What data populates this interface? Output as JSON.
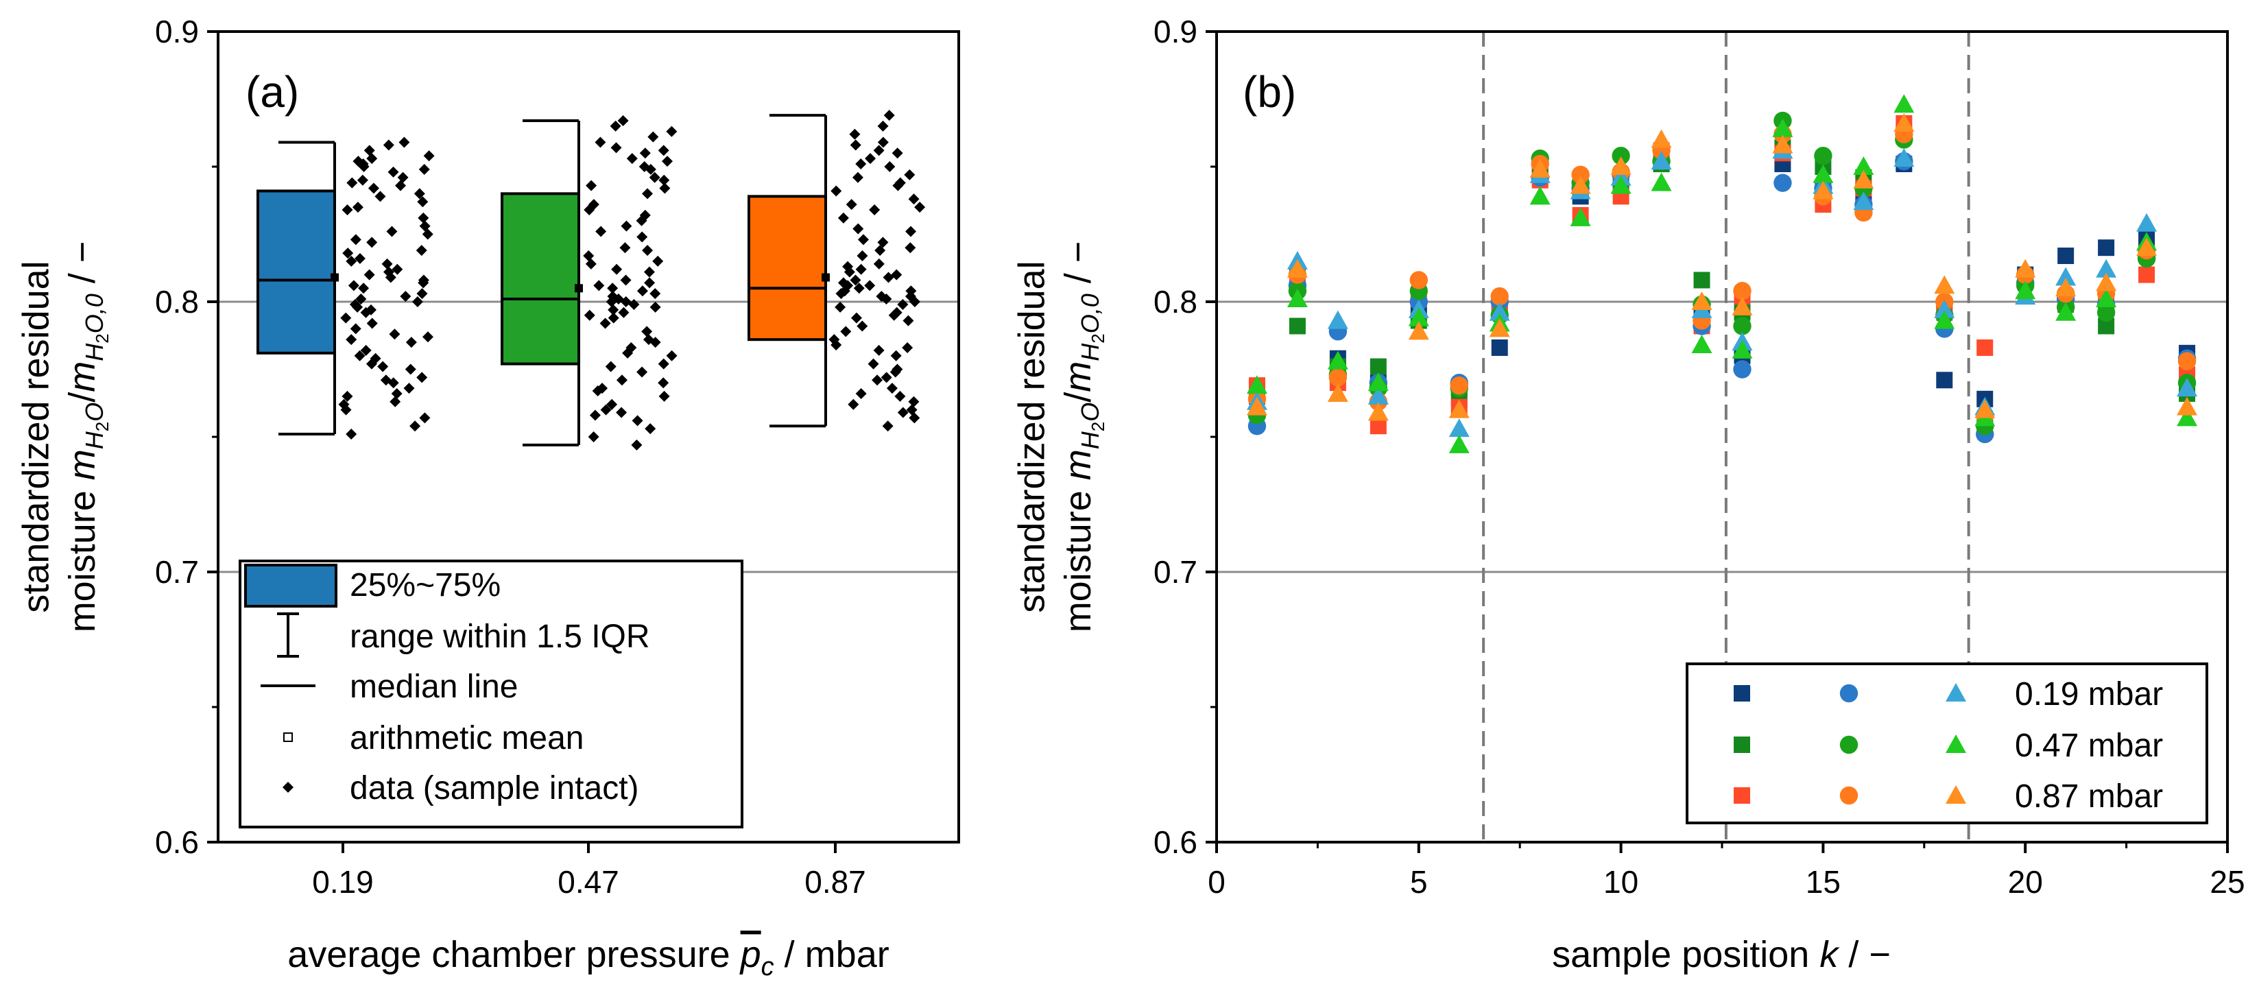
{
  "chart_data": [
    {
      "type": "box",
      "panel_label": "(a)",
      "title": "",
      "xlabel_parts": [
        "average chamber pressure ",
        "p",
        "c",
        " / mbar"
      ],
      "ylabel_lines": [
        "standardized residual",
        [
          "moisture ",
          "m",
          "H",
          "2",
          "O",
          "/",
          "m",
          "H",
          "2",
          "O,0",
          " / −"
        ]
      ],
      "ylim": [
        0.6,
        0.9
      ],
      "yticks": [
        "0.6",
        "0.7",
        "0.8",
        "0.9"
      ],
      "gridlines_y": [
        0.7,
        0.8
      ],
      "categories": [
        "0.19",
        "0.47",
        "0.87"
      ],
      "colors": [
        "#1f77b4",
        "#22a02a",
        "#ff6a00"
      ],
      "boxes": [
        {
          "category": "0.19",
          "q1": 0.781,
          "median": 0.808,
          "q3": 0.841,
          "whisker_low": 0.751,
          "whisker_high": 0.859,
          "mean": 0.809
        },
        {
          "category": "0.47",
          "q1": 0.777,
          "median": 0.801,
          "q3": 0.84,
          "whisker_low": 0.747,
          "whisker_high": 0.867,
          "mean": 0.805
        },
        {
          "category": "0.87",
          "q1": 0.786,
          "median": 0.805,
          "q3": 0.839,
          "whisker_low": 0.754,
          "whisker_high": 0.869,
          "mean": 0.809
        }
      ],
      "points": [
        [
          0.751,
          0.754,
          0.757,
          0.76,
          0.762,
          0.765,
          0.768,
          0.77,
          0.772,
          0.775,
          0.777,
          0.78,
          0.782,
          0.785,
          0.787,
          0.79,
          0.792,
          0.794,
          0.796,
          0.798,
          0.8,
          0.801,
          0.803,
          0.805,
          0.807,
          0.808,
          0.81,
          0.812,
          0.814,
          0.816,
          0.819,
          0.822,
          0.825,
          0.828,
          0.831,
          0.834,
          0.837,
          0.84,
          0.842,
          0.844,
          0.846,
          0.848,
          0.85,
          0.852,
          0.854,
          0.856,
          0.858,
          0.859,
          0.763,
          0.771,
          0.779,
          0.788,
          0.797,
          0.802,
          0.806,
          0.811,
          0.818,
          0.826,
          0.835,
          0.843,
          0.849,
          0.853,
          0.766,
          0.776,
          0.786,
          0.799,
          0.809,
          0.815,
          0.823,
          0.839,
          0.845,
          0.851
        ],
        [
          0.747,
          0.75,
          0.753,
          0.756,
          0.759,
          0.762,
          0.765,
          0.768,
          0.771,
          0.774,
          0.777,
          0.78,
          0.783,
          0.786,
          0.789,
          0.792,
          0.794,
          0.796,
          0.798,
          0.799,
          0.8,
          0.801,
          0.802,
          0.804,
          0.806,
          0.808,
          0.811,
          0.814,
          0.817,
          0.82,
          0.824,
          0.828,
          0.832,
          0.836,
          0.84,
          0.843,
          0.846,
          0.849,
          0.852,
          0.855,
          0.857,
          0.859,
          0.861,
          0.863,
          0.865,
          0.867,
          0.758,
          0.767,
          0.776,
          0.785,
          0.795,
          0.8,
          0.803,
          0.807,
          0.812,
          0.819,
          0.826,
          0.834,
          0.842,
          0.85,
          0.856,
          0.76,
          0.77,
          0.781,
          0.797,
          0.805,
          0.815,
          0.83,
          0.845,
          0.853
        ],
        [
          0.754,
          0.757,
          0.76,
          0.762,
          0.765,
          0.768,
          0.771,
          0.774,
          0.777,
          0.78,
          0.783,
          0.786,
          0.789,
          0.791,
          0.794,
          0.796,
          0.798,
          0.8,
          0.801,
          0.802,
          0.803,
          0.804,
          0.805,
          0.806,
          0.807,
          0.808,
          0.81,
          0.812,
          0.814,
          0.817,
          0.82,
          0.823,
          0.827,
          0.831,
          0.835,
          0.838,
          0.841,
          0.844,
          0.847,
          0.85,
          0.853,
          0.856,
          0.859,
          0.862,
          0.865,
          0.869,
          0.759,
          0.766,
          0.775,
          0.784,
          0.793,
          0.799,
          0.802,
          0.806,
          0.809,
          0.813,
          0.819,
          0.826,
          0.834,
          0.843,
          0.851,
          0.858,
          0.763,
          0.772,
          0.782,
          0.795,
          0.804,
          0.811,
          0.822,
          0.836,
          0.846,
          0.855
        ]
      ],
      "legend": [
        {
          "kind": "box",
          "label": "25%~75%"
        },
        {
          "kind": "whisker",
          "label": "range within 1.5 IQR"
        },
        {
          "kind": "median",
          "label": "median line"
        },
        {
          "kind": "mean",
          "label": "arithmetic mean"
        },
        {
          "kind": "data",
          "label": "data (sample intact)"
        }
      ]
    },
    {
      "type": "scatter",
      "panel_label": "(b)",
      "title": "",
      "xlabel_parts": [
        "sample position ",
        "k",
        " / −"
      ],
      "ylabel_lines": [
        "standardized residual",
        [
          "moisture ",
          "m",
          "H",
          "2",
          "O",
          "/",
          "m",
          "H",
          "2",
          "O,0",
          " / −"
        ]
      ],
      "xlim": [
        0,
        25
      ],
      "ylim": [
        0.6,
        0.9
      ],
      "xticks": [
        "0",
        "5",
        "10",
        "15",
        "20",
        "25"
      ],
      "yticks": [
        "0.6",
        "0.7",
        "0.8",
        "0.9"
      ],
      "gridlines_y": [
        0.7,
        0.8
      ],
      "vlines_dashed": [
        6.6,
        12.6,
        18.6
      ],
      "x": [
        1,
        2,
        3,
        4,
        5,
        6,
        7,
        8,
        9,
        10,
        11,
        12,
        13,
        14,
        15,
        16,
        17,
        18,
        19,
        20,
        21,
        22,
        23,
        24
      ],
      "series": [
        {
          "name": "square 0.19 mbar",
          "marker": "square",
          "color": "#0d3b78",
          "values": [
            0.765,
            0.809,
            0.779,
            0.77,
            0.798,
            0.768,
            0.783,
            0.846,
            0.839,
            0.844,
            0.851,
            0.795,
            0.78,
            0.851,
            0.842,
            0.84,
            0.851,
            0.771,
            0.764,
            0.81,
            0.817,
            0.82,
            0.823,
            0.781
          ]
        },
        {
          "name": "square 0.47 mbar",
          "marker": "square",
          "color": "#14881e",
          "values": [
            0.767,
            0.791,
            0.776,
            0.776,
            0.793,
            0.764,
            0.797,
            0.85,
            0.842,
            0.845,
            0.851,
            0.808,
            0.796,
            0.857,
            0.85,
            0.846,
            0.862,
            0.798,
            0.756,
            0.808,
            0.799,
            0.791,
            0.818,
            0.766
          ]
        },
        {
          "name": "square 0.87 mbar",
          "marker": "square",
          "color": "#ff4a2a",
          "values": [
            0.769,
            0.807,
            0.77,
            0.754,
            0.801,
            0.761,
            0.8,
            0.845,
            0.832,
            0.839,
            0.856,
            0.791,
            0.802,
            0.855,
            0.836,
            0.842,
            0.866,
            0.796,
            0.783,
            0.808,
            0.801,
            0.799,
            0.81,
            0.773
          ]
        },
        {
          "name": "circle 0.19 mbar",
          "marker": "circle",
          "color": "#2b7ac9",
          "values": [
            0.754,
            0.806,
            0.789,
            0.77,
            0.8,
            0.77,
            0.8,
            0.846,
            0.842,
            0.847,
            0.852,
            0.791,
            0.775,
            0.844,
            0.842,
            0.836,
            0.852,
            0.79,
            0.751,
            0.807,
            0.801,
            0.799,
            0.816,
            0.779
          ]
        },
        {
          "name": "circle 0.47 mbar",
          "marker": "circle",
          "color": "#1aa31a",
          "values": [
            0.758,
            0.804,
            0.773,
            0.768,
            0.804,
            0.768,
            0.795,
            0.853,
            0.844,
            0.854,
            0.852,
            0.799,
            0.791,
            0.867,
            0.854,
            0.842,
            0.86,
            0.795,
            0.754,
            0.806,
            0.798,
            0.796,
            0.816,
            0.77
          ]
        },
        {
          "name": "circle 0.87 mbar",
          "marker": "circle",
          "color": "#ff7a1a",
          "values": [
            0.764,
            0.81,
            0.772,
            0.763,
            0.808,
            0.769,
            0.802,
            0.851,
            0.847,
            0.848,
            0.856,
            0.793,
            0.804,
            0.862,
            0.839,
            0.833,
            0.862,
            0.8,
            0.758,
            0.81,
            0.803,
            0.803,
            0.819,
            0.778
          ]
        },
        {
          "name": "triangle 0.19 mbar",
          "marker": "triangle",
          "color": "#3aa6d8",
          "values": [
            0.763,
            0.815,
            0.793,
            0.765,
            0.797,
            0.753,
            0.796,
            0.847,
            0.841,
            0.846,
            0.852,
            0.797,
            0.785,
            0.856,
            0.843,
            0.837,
            0.853,
            0.797,
            0.761,
            0.802,
            0.809,
            0.812,
            0.829,
            0.768
          ]
        },
        {
          "name": "triangle 0.47 mbar",
          "marker": "triangle",
          "color": "#1fcc1f",
          "values": [
            0.769,
            0.801,
            0.778,
            0.77,
            0.794,
            0.747,
            0.792,
            0.839,
            0.831,
            0.843,
            0.844,
            0.784,
            0.782,
            0.864,
            0.847,
            0.85,
            0.873,
            0.793,
            0.757,
            0.804,
            0.796,
            0.801,
            0.822,
            0.757
          ]
        },
        {
          "name": "triangle 0.87 mbar",
          "marker": "triangle",
          "color": "#ff8f1f",
          "values": [
            0.761,
            0.812,
            0.766,
            0.759,
            0.789,
            0.76,
            0.79,
            0.849,
            0.843,
            0.85,
            0.86,
            0.8,
            0.798,
            0.858,
            0.841,
            0.845,
            0.866,
            0.806,
            0.76,
            0.812,
            0.805,
            0.807,
            0.82,
            0.761
          ]
        }
      ],
      "legend_rows": [
        {
          "label": "0.19 mbar",
          "colors": [
            "#0d3b78",
            "#2b7ac9",
            "#3aa6d8"
          ]
        },
        {
          "label": "0.47 mbar",
          "colors": [
            "#14881e",
            "#1aa31a",
            "#1fcc1f"
          ]
        },
        {
          "label": "0.87 mbar",
          "colors": [
            "#ff4a2a",
            "#ff7a1a",
            "#ff8f1f"
          ]
        }
      ]
    }
  ]
}
